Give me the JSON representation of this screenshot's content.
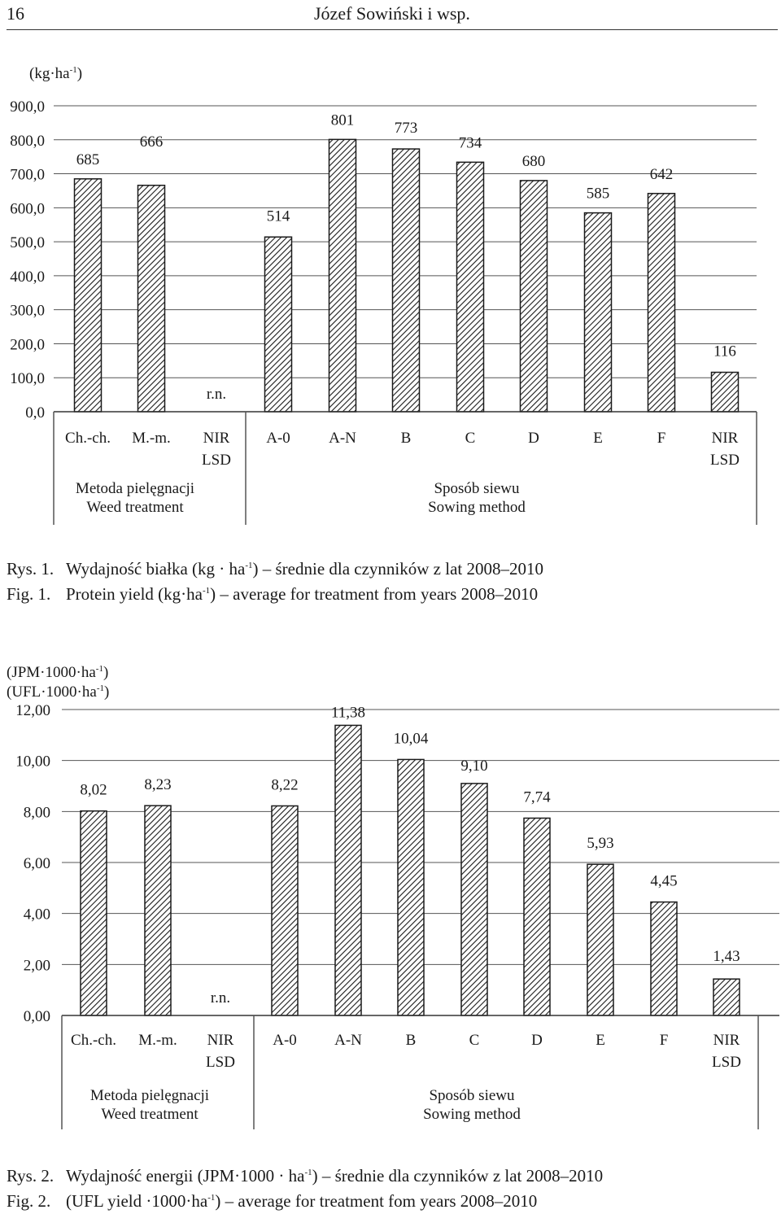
{
  "header": {
    "page_number": "16",
    "running_title": "Józef Sowiński i wsp."
  },
  "chart_data": [
    {
      "type": "bar",
      "unit_label": "(kg·ha-1)",
      "ylim": [
        0,
        900
      ],
      "yticks": [
        "0,0",
        "100,0",
        "200,0",
        "300,0",
        "400,0",
        "500,0",
        "600,0",
        "700,0",
        "800,0",
        "900,0"
      ],
      "grid": true,
      "pattern": "diagonal hatching",
      "categories": [
        "Ch.-ch.",
        "M.-m.",
        "NIR LSD",
        "A-0",
        "A-N",
        "B",
        "C",
        "D",
        "E",
        "F",
        "NIR LSD"
      ],
      "values": [
        685,
        666,
        null,
        514,
        801,
        773,
        734,
        680,
        585,
        642,
        116
      ],
      "value_labels": [
        "685",
        "666",
        "r.n.",
        "514",
        "801",
        "773",
        "734",
        "680",
        "585",
        "642",
        "116"
      ],
      "groups": [
        {
          "label_pl": "Metoda pielęgnacji",
          "label_en": "Weed treatment"
        },
        {
          "label_pl": "Sposób siewu",
          "label_en": "Sowing method"
        }
      ]
    },
    {
      "type": "bar",
      "unit_label_1": "(JPM·1000·ha-1)",
      "unit_label_2": "(UFL·1000·ha-1)",
      "ylim": [
        0,
        12
      ],
      "yticks": [
        "0,00",
        "2,00",
        "4,00",
        "6,00",
        "8,00",
        "10,00",
        "12,00"
      ],
      "grid": true,
      "pattern": "diagonal hatching",
      "categories": [
        "Ch.-ch.",
        "M.-m.",
        "NIR LSD",
        "A-0",
        "A-N",
        "B",
        "C",
        "D",
        "E",
        "F",
        "NIR LSD"
      ],
      "values": [
        8.02,
        8.23,
        null,
        8.22,
        11.38,
        10.04,
        9.1,
        7.74,
        5.93,
        4.45,
        1.43
      ],
      "value_labels": [
        "8,02",
        "8,23",
        "r.n.",
        "8,22",
        "11,38",
        "10,04",
        "9,10",
        "7,74",
        "5,93",
        "4,45",
        "1,43"
      ],
      "groups": [
        {
          "label_pl": "Metoda pielęgnacji",
          "label_en": "Weed treatment"
        },
        {
          "label_pl": "Sposób siewu",
          "label_en": "Sowing method"
        }
      ]
    }
  ],
  "captions": {
    "fig1_pl_num": "Rys. 1.",
    "fig1_pl_a": "Wydajność białka (kg · ha",
    "fig1_pl_sup": "-1",
    "fig1_pl_b": ") – średnie dla czynników z lat 2008–2010",
    "fig1_en_num": "Fig. 1.",
    "fig1_en_a": "Protein yield (kg·ha",
    "fig1_en_sup": "-1",
    "fig1_en_b": ") – average for treatment from years 2008–2010",
    "fig2_pl_num": "Rys. 2.",
    "fig2_pl_a": "Wydajność energii (JPM·1000 · ha",
    "fig2_pl_sup": "-1",
    "fig2_pl_b": ") – średnie dla czynników z lat 2008–2010",
    "fig2_en_num": "Fig. 2.",
    "fig2_en_a": "(UFL yield ·1000·ha",
    "fig2_en_sup": "-1",
    "fig2_en_b": ") – average for treatment fom years 2008–2010"
  }
}
